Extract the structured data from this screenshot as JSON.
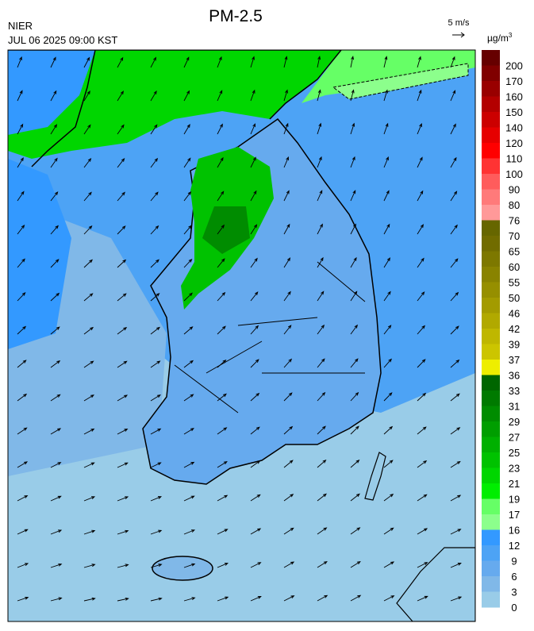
{
  "header": {
    "title": "PM-2.5",
    "agency": "NIER",
    "datetime": "JUL 06 2025 09:00 KST",
    "wind_scale": "5 m/s"
  },
  "legend": {
    "unit": "µg/m",
    "unit_exponent": "3",
    "bins": [
      {
        "color": "#660000",
        "label": null
      },
      {
        "color": "#800000",
        "label": 200
      },
      {
        "color": "#990000",
        "label": 170
      },
      {
        "color": "#b30000",
        "label": 160
      },
      {
        "color": "#cc0000",
        "label": 150
      },
      {
        "color": "#e60000",
        "label": 140
      },
      {
        "color": "#ff0000",
        "label": 120
      },
      {
        "color": "#ff3333",
        "label": 110
      },
      {
        "color": "#ff5c5c",
        "label": 100
      },
      {
        "color": "#ff7a7a",
        "label": 90
      },
      {
        "color": "#ff9999",
        "label": 80
      },
      {
        "color": "#666600",
        "label": 76
      },
      {
        "color": "#716c00",
        "label": 70
      },
      {
        "color": "#7d7800",
        "label": 65
      },
      {
        "color": "#898300",
        "label": 60
      },
      {
        "color": "#968f00",
        "label": 55
      },
      {
        "color": "#a39b00",
        "label": 50
      },
      {
        "color": "#b1a900",
        "label": 46
      },
      {
        "color": "#bfb700",
        "label": 42
      },
      {
        "color": "#ccc500",
        "label": 39
      },
      {
        "color": "#eeee00",
        "label": 37
      },
      {
        "color": "#006600",
        "label": 36
      },
      {
        "color": "#007a00",
        "label": 33
      },
      {
        "color": "#008c00",
        "label": 31
      },
      {
        "color": "#009e00",
        "label": 29
      },
      {
        "color": "#00b000",
        "label": 27
      },
      {
        "color": "#00c200",
        "label": 25
      },
      {
        "color": "#00d600",
        "label": 23
      },
      {
        "color": "#00ee00",
        "label": 21
      },
      {
        "color": "#66ff66",
        "label": 19
      },
      {
        "color": "#8cff8c",
        "label": 17
      },
      {
        "color": "#3399ff",
        "label": 16
      },
      {
        "color": "#4da3f5",
        "label": 12
      },
      {
        "color": "#66aaee",
        "label": 9
      },
      {
        "color": "#80b8e8",
        "label": 6
      },
      {
        "color": "#99cce8",
        "label": 3
      }
    ],
    "bottom_label": 0
  }
}
